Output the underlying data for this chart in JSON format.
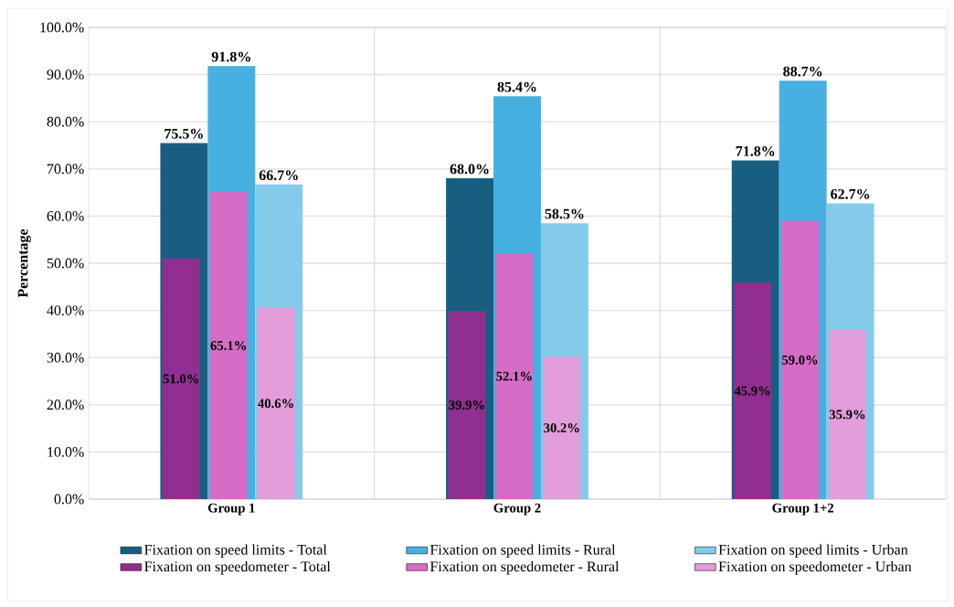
{
  "chart_data": {
    "type": "bar",
    "ylabel": "Percentage",
    "categories": [
      "Group 1",
      "Group 2",
      "Group 1+2"
    ],
    "ylim": [
      0,
      100
    ],
    "yticks": [
      {
        "value": 0,
        "label": "0.0%"
      },
      {
        "value": 10,
        "label": "10.0%"
      },
      {
        "value": 20,
        "label": "20.0%"
      },
      {
        "value": 30,
        "label": "30.0%"
      },
      {
        "value": 40,
        "label": "40.0%"
      },
      {
        "value": 50,
        "label": "50.0%"
      },
      {
        "value": 60,
        "label": "60.0%"
      },
      {
        "value": 70,
        "label": "70.0%"
      },
      {
        "value": 80,
        "label": "80.0%"
      },
      {
        "value": 90,
        "label": "90.0%"
      },
      {
        "value": 100,
        "label": "100.0%"
      }
    ],
    "grid": true,
    "legend": "bottom",
    "series": [
      {
        "name": "Fixation on speed limits - Total",
        "color": "#175e80",
        "values": [
          75.5,
          68.0,
          71.8
        ],
        "value_labels": [
          "75.5%",
          "68.0%",
          "71.8%"
        ]
      },
      {
        "name": "Fixation on speed limits - Rural",
        "color": "#46b0e0",
        "values": [
          91.8,
          85.4,
          88.7
        ],
        "value_labels": [
          "91.8%",
          "85.4%",
          "88.7%"
        ]
      },
      {
        "name": "Fixation on speed limits - Urban",
        "color": "#84cbea",
        "values": [
          66.7,
          58.5,
          62.7
        ],
        "value_labels": [
          "66.7%",
          "58.5%",
          "62.7%"
        ]
      },
      {
        "name": "Fixation on speedometer - Total",
        "color": "#902f8f",
        "values": [
          51.0,
          39.9,
          45.9
        ],
        "value_labels": [
          "51.0%",
          "39.9%",
          "45.9%"
        ]
      },
      {
        "name": "Fixation on speedometer - Rural",
        "color": "#d66cc6",
        "values": [
          65.1,
          52.1,
          59.0
        ],
        "value_labels": [
          "65.1%",
          "52.1%",
          "59.0%"
        ]
      },
      {
        "name": "Fixation on speedometer - Urban",
        "color": "#e39ddb",
        "values": [
          40.6,
          30.2,
          35.9
        ],
        "value_labels": [
          "40.6%",
          "30.2%",
          "35.9%"
        ]
      }
    ]
  }
}
